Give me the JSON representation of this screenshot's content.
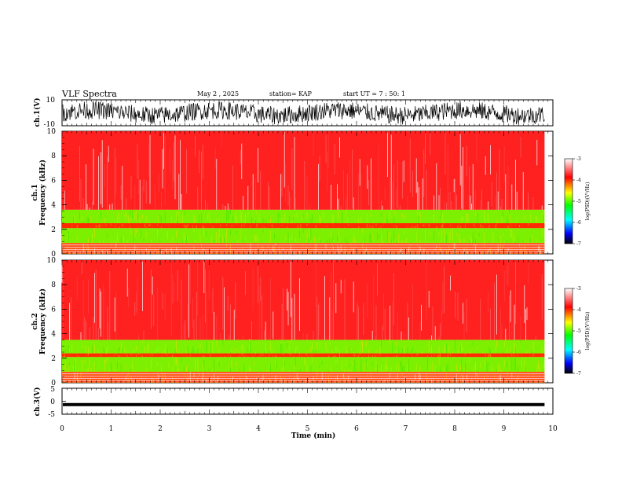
{
  "header": {
    "title": "VLF Spectra",
    "date": "May 2 , 2025",
    "station": "station= KAP",
    "start": "start  UT  =   7 : 50: 1"
  },
  "chart_data": [
    {
      "type": "line",
      "panel": "ch1-waveform",
      "ylabel": "ch.1(V)",
      "ylim": [
        -10,
        10
      ],
      "ytick_labels": [
        "10",
        "-10"
      ],
      "x_range_min": [
        0,
        9.83
      ],
      "color": "#000000"
    },
    {
      "type": "heatmap",
      "panel": "ch1-spectrogram",
      "ylabel": "ch.1 Frequency (kHz)",
      "ylim": [
        0,
        10
      ],
      "ytick_labels": [
        "0",
        "2",
        "4",
        "6",
        "8",
        "10"
      ],
      "x_range_min": [
        0,
        9.83
      ],
      "bands_khz": [
        {
          "from": 0,
          "to": 0.9,
          "level": "red/orange lines"
        },
        {
          "from": 0.9,
          "to": 2.1,
          "level": "green/yellow"
        },
        {
          "from": 2.1,
          "to": 2.5,
          "level": "red/orange"
        },
        {
          "from": 2.5,
          "to": 3.6,
          "level": "green/yellow"
        },
        {
          "from": 3.6,
          "to": 10,
          "level": "red/white speckle"
        }
      ]
    },
    {
      "type": "heatmap",
      "panel": "ch2-spectrogram",
      "ylabel": "ch.2 Frequency (kHz)",
      "ylim": [
        0,
        10
      ],
      "ytick_labels": [
        "0",
        "2",
        "4",
        "6",
        "8",
        "10"
      ],
      "x_range_min": [
        0,
        9.83
      ],
      "bands_khz": [
        {
          "from": 0,
          "to": 0.9,
          "level": "red/orange lines"
        },
        {
          "from": 0.9,
          "to": 2.1,
          "level": "green/yellow"
        },
        {
          "from": 2.1,
          "to": 2.4,
          "level": "red/orange"
        },
        {
          "from": 2.4,
          "to": 3.5,
          "level": "green/yellow"
        },
        {
          "from": 3.5,
          "to": 10,
          "level": "red/white speckle"
        }
      ]
    },
    {
      "type": "line",
      "panel": "ch3-waveform",
      "ylabel": "ch.3(V)",
      "ylim": [
        -5,
        5
      ],
      "ytick_labels": [
        "5",
        "0",
        "-5"
      ],
      "level_v": -1.3,
      "x_range_min": [
        0,
        9.83
      ],
      "color": "#000000"
    }
  ],
  "xaxis": {
    "label": "Time  (min)",
    "min": 0,
    "max": 10,
    "tick_labels": [
      "0",
      "1",
      "2",
      "3",
      "4",
      "5",
      "6",
      "7",
      "8",
      "9",
      "10"
    ]
  },
  "colorbar": {
    "label": "log(PSD)(V²/Hz)",
    "range": [
      -7,
      -3
    ],
    "tick_labels": [
      "-3",
      "-4",
      "-5",
      "-6",
      "-7"
    ],
    "stops": [
      "#ffffff",
      "#ff0000",
      "#ffff00",
      "#00ff00",
      "#00ffff",
      "#0000ff",
      "#000000"
    ]
  }
}
